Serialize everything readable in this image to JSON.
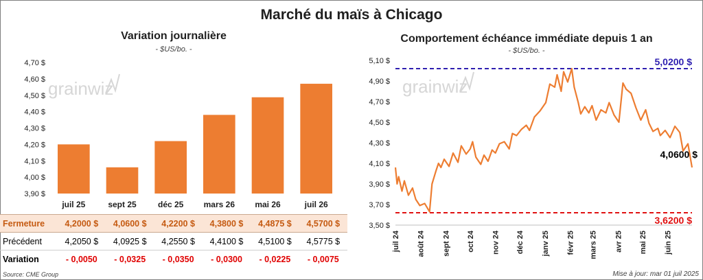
{
  "header": {
    "title": "Marché du maïs à Chicago"
  },
  "watermark": "grainwiz",
  "left_panel": {
    "title": "Variation journalière",
    "subtitle": "- $US/bo. -"
  },
  "right_panel": {
    "title": "Comportement échéance immédiate depuis 1 an",
    "subtitle": "- $US/bo. -"
  },
  "table": {
    "rows": [
      {
        "label": "Fermeture",
        "values": [
          "4,2000  $",
          "4,0600  $",
          "4,2200  $",
          "4,3800  $",
          "4,4875  $",
          "4,5700  $"
        ]
      },
      {
        "label": "Précédent",
        "values": [
          "4,2050  $",
          "4,0925  $",
          "4,2550  $",
          "4,4100  $",
          "4,5100  $",
          "4,5775  $"
        ]
      },
      {
        "label": "Variation",
        "values": [
          "- 0,0050",
          "- 0,0325",
          "- 0,0350",
          "- 0,0300",
          "- 0,0225",
          "- 0,0075"
        ]
      }
    ]
  },
  "footer": {
    "source": "Source: CME Group",
    "update": "Mise à jour: mar 01 juil 2025"
  },
  "colors": {
    "bar": "#ed7d31",
    "line": "#ed7d31",
    "high": "#2e1fb0",
    "low": "#e01010"
  },
  "chart_data": [
    {
      "type": "bar",
      "categories": [
        "juil 25",
        "sept 25",
        "déc 25",
        "mars 26",
        "mai 26",
        "juil 26"
      ],
      "values": [
        4.2,
        4.06,
        4.22,
        4.38,
        4.4875,
        4.57
      ],
      "ylim": [
        3.9,
        4.7
      ],
      "yticks": [
        "3,90 $",
        "4,00 $",
        "4,10 $",
        "4,20 $",
        "4,30 $",
        "4,40 $",
        "4,50 $",
        "4,60 $",
        "4,70 $"
      ],
      "grid": false
    },
    {
      "type": "line",
      "x": [
        "2024-07-01",
        "2024-07-03",
        "2024-07-05",
        "2024-07-09",
        "2024-07-12",
        "2024-07-17",
        "2024-07-22",
        "2024-07-26",
        "2024-07-31",
        "2024-08-06",
        "2024-08-12",
        "2024-08-15",
        "2024-08-20",
        "2024-08-23",
        "2024-08-26",
        "2024-08-30",
        "2024-09-05",
        "2024-09-10",
        "2024-09-16",
        "2024-09-20",
        "2024-09-26",
        "2024-10-01",
        "2024-10-04",
        "2024-10-08",
        "2024-10-14",
        "2024-10-18",
        "2024-10-23",
        "2024-10-28",
        "2024-11-01",
        "2024-11-06",
        "2024-11-12",
        "2024-11-18",
        "2024-11-22",
        "2024-11-27",
        "2024-12-03",
        "2024-12-09",
        "2024-12-13",
        "2024-12-19",
        "2024-12-26",
        "2025-01-02",
        "2025-01-07",
        "2025-01-13",
        "2025-01-16",
        "2025-01-21",
        "2025-01-24",
        "2025-01-29",
        "2025-02-03",
        "2025-02-06",
        "2025-02-11",
        "2025-02-14",
        "2025-02-19",
        "2025-02-24",
        "2025-02-28",
        "2025-03-05",
        "2025-03-11",
        "2025-03-17",
        "2025-03-21",
        "2025-03-27",
        "2025-04-02",
        "2025-04-07",
        "2025-04-11",
        "2025-04-17",
        "2025-04-23",
        "2025-04-29",
        "2025-05-05",
        "2025-05-09",
        "2025-05-14",
        "2025-05-20",
        "2025-05-23",
        "2025-05-29",
        "2025-06-04",
        "2025-06-10",
        "2025-06-16",
        "2025-06-20",
        "2025-06-26",
        "2025-07-01"
      ],
      "y": [
        4.06,
        3.9,
        3.97,
        3.83,
        3.93,
        3.79,
        3.86,
        3.75,
        3.69,
        3.71,
        3.63,
        3.9,
        4.03,
        4.1,
        4.06,
        4.14,
        4.07,
        4.2,
        4.11,
        4.27,
        4.19,
        4.24,
        4.31,
        4.16,
        4.09,
        4.18,
        4.12,
        4.23,
        4.2,
        4.29,
        4.31,
        4.24,
        4.39,
        4.37,
        4.43,
        4.47,
        4.42,
        4.55,
        4.61,
        4.69,
        4.87,
        4.84,
        4.96,
        4.8,
        4.99,
        4.89,
        5.02,
        4.84,
        4.69,
        4.58,
        4.65,
        4.59,
        4.66,
        4.52,
        4.62,
        4.59,
        4.69,
        4.57,
        4.5,
        4.88,
        4.82,
        4.78,
        4.64,
        4.52,
        4.62,
        4.49,
        4.41,
        4.44,
        4.37,
        4.42,
        4.35,
        4.46,
        4.4,
        4.22,
        4.29,
        4.06
      ],
      "ylim": [
        3.5,
        5.1
      ],
      "yticks": [
        "3,50 $",
        "3,70 $",
        "3,90 $",
        "4,10 $",
        "4,30 $",
        "4,50 $",
        "4,70 $",
        "4,90 $",
        "5,10 $"
      ],
      "xticks": [
        {
          "date": "2024-07-01",
          "label": "juil 24"
        },
        {
          "date": "2024-08-01",
          "label": "août 24"
        },
        {
          "date": "2024-09-01",
          "label": "sept 24"
        },
        {
          "date": "2024-10-01",
          "label": "oct 24"
        },
        {
          "date": "2024-11-01",
          "label": "nov 24"
        },
        {
          "date": "2024-12-01",
          "label": "déc 24"
        },
        {
          "date": "2025-01-01",
          "label": "janv 25"
        },
        {
          "date": "2025-02-01",
          "label": "févr 25"
        },
        {
          "date": "2025-03-01",
          "label": "mars 25"
        },
        {
          "date": "2025-04-01",
          "label": "avr 25"
        },
        {
          "date": "2025-05-01",
          "label": "mai 25"
        },
        {
          "date": "2025-06-01",
          "label": "juin 25"
        }
      ],
      "reference_lines": [
        {
          "value": 5.02,
          "label": "5,0200 $",
          "color": "#2e1fb0"
        },
        {
          "value": 3.62,
          "label": "3,6200 $",
          "color": "#e01010"
        }
      ],
      "last_label": "4,0600 $",
      "grid": false
    }
  ]
}
